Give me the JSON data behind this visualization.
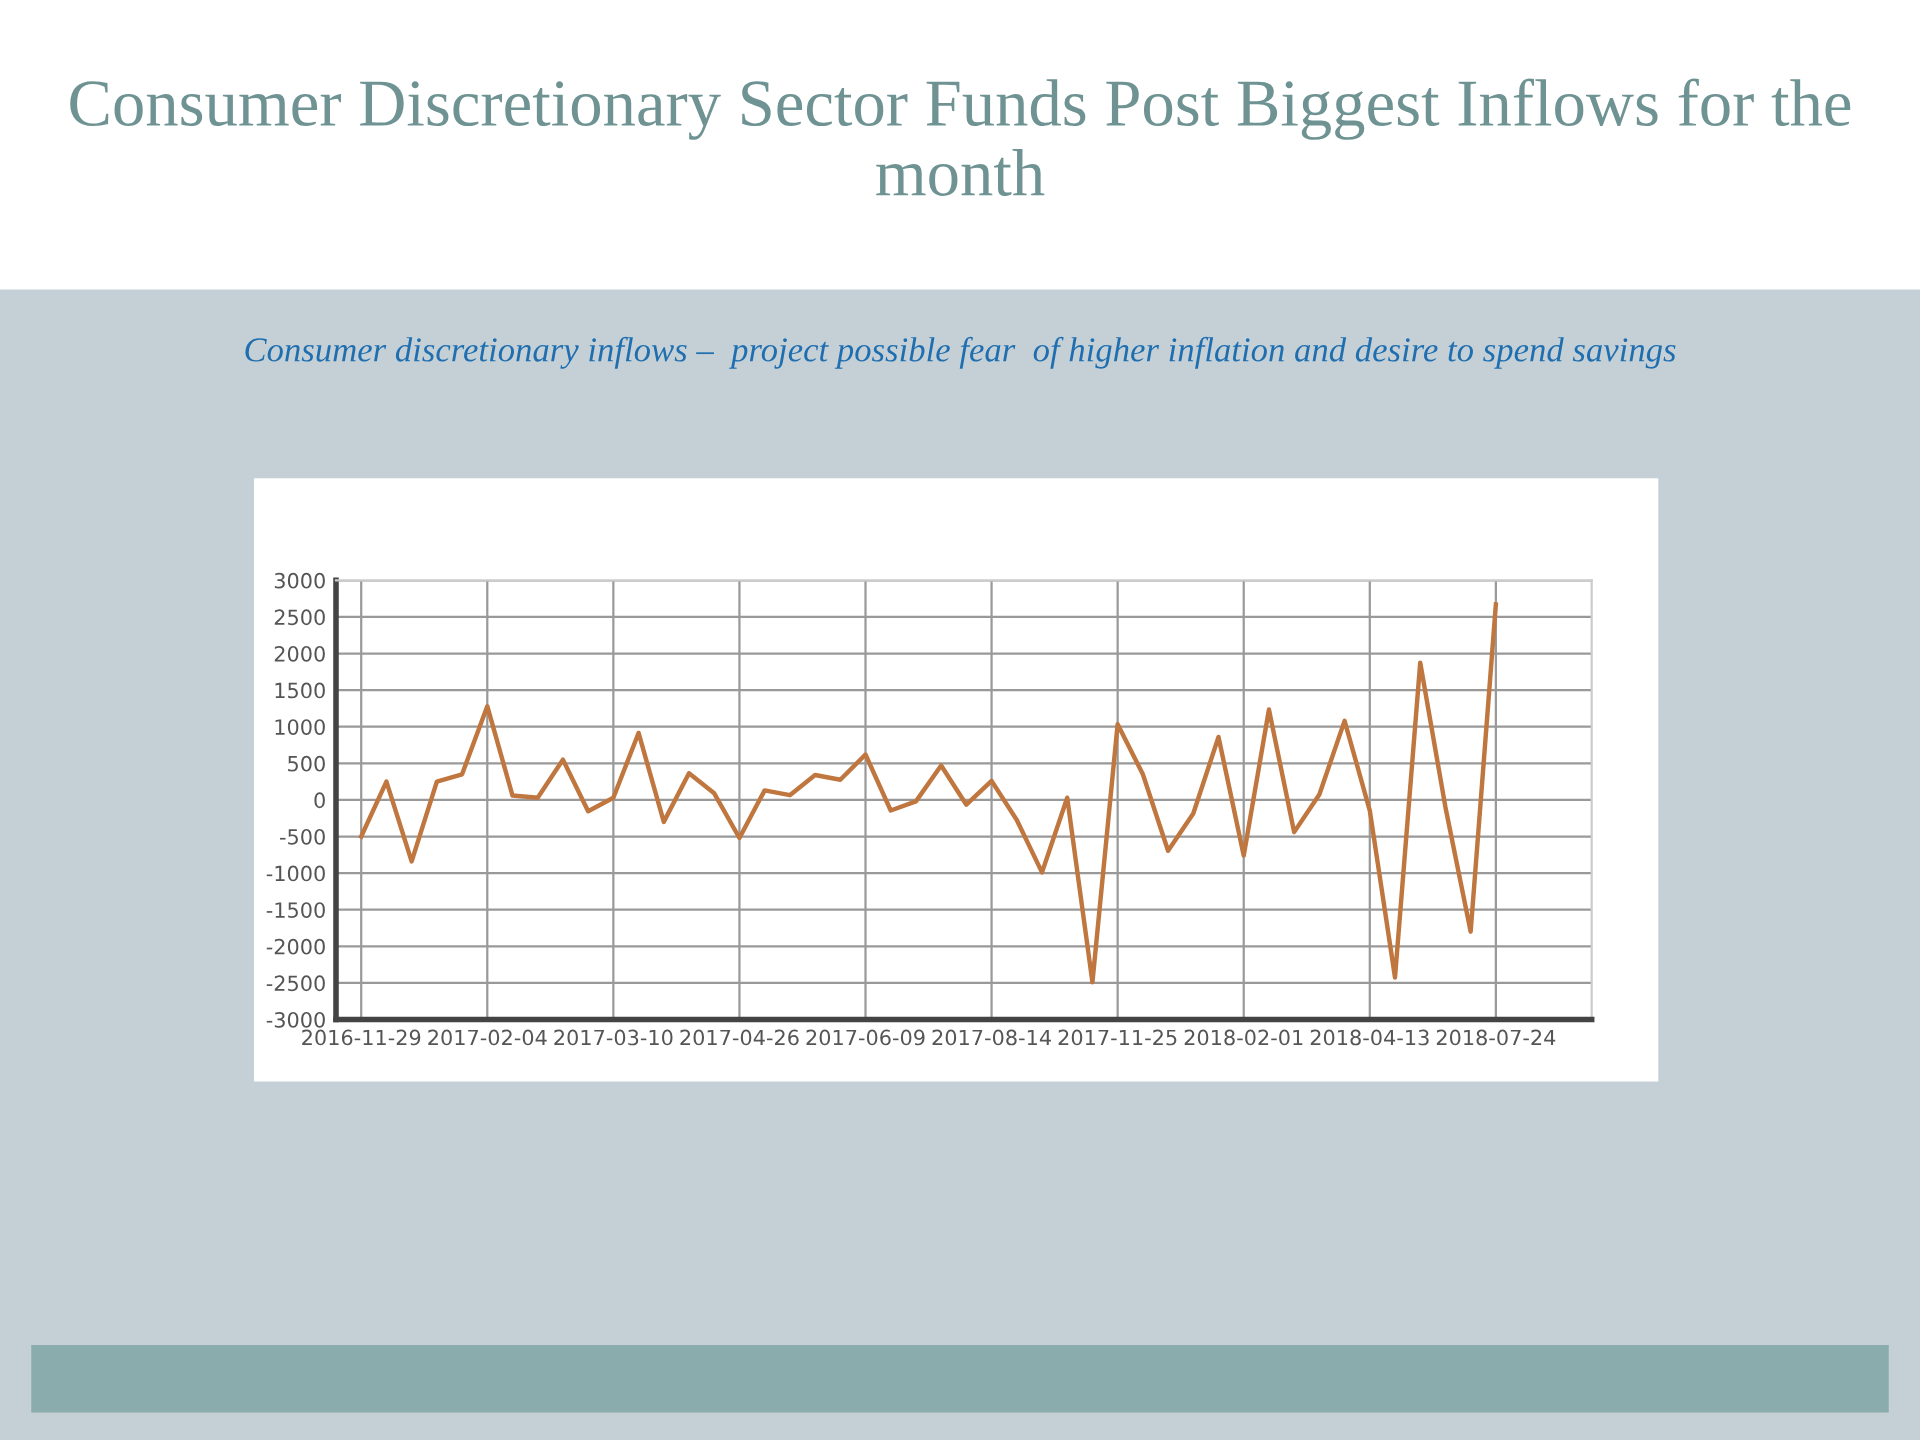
{
  "chart_data": {
    "type": "line",
    "title": "Consumer Discretionary Sector Funds Post Biggest Inflows for the month",
    "subtitle": "Consumer discretionary inflows –  project possible fear  of higher inflation and desire to spend savings",
    "categories": [
      "2016-11-29",
      null,
      null,
      null,
      null,
      "2017-02-04",
      null,
      null,
      null,
      null,
      "2017-03-10",
      null,
      null,
      null,
      null,
      "2017-04-26",
      null,
      null,
      null,
      null,
      "2017-06-09",
      null,
      null,
      null,
      null,
      "2017-08-14",
      null,
      null,
      null,
      null,
      "2017-11-25",
      null,
      null,
      null,
      null,
      "2018-02-01",
      null,
      null,
      null,
      null,
      "2018-04-13",
      null,
      null,
      null,
      null,
      "2018-07-24"
    ],
    "series": [
      {
        "color": "#c0763f",
        "values": [
          -500,
          250,
          -840,
          250,
          350,
          1280,
          60,
          30,
          550,
          -155,
          30,
          915,
          -300,
          365,
          90,
          -520,
          130,
          65,
          340,
          275,
          620,
          -145,
          -20,
          470,
          -65,
          260,
          -275,
          -990,
          30,
          -2490,
          1035,
          350,
          -695,
          -185,
          860,
          -760,
          1235,
          -440,
          75,
          1080,
          -145,
          -2425,
          1875,
          -100,
          -1800,
          2670
        ]
      }
    ],
    "ylim": [
      -3000,
      3000
    ],
    "yticks": [
      -3000,
      -2500,
      -2000,
      -1500,
      -1000,
      -500,
      0,
      500,
      1000,
      1500,
      2000,
      2500,
      3000
    ],
    "grid": true
  }
}
